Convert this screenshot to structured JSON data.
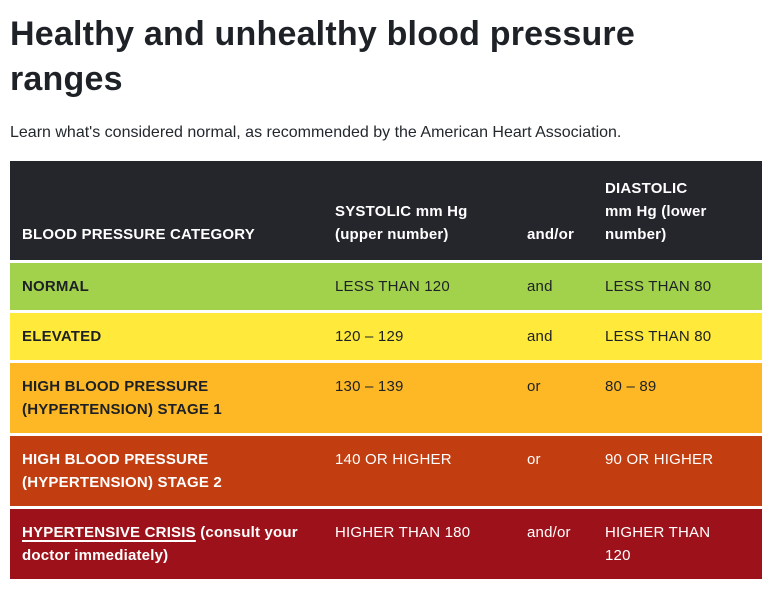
{
  "page": {
    "title_line1": "Healthy and unhealthy blood pressure",
    "title_line2": "ranges",
    "subtitle": "Learn what's considered normal, as recommended by the American Heart Association."
  },
  "table": {
    "header": {
      "category": "BLOOD PRESSURE CATEGORY",
      "systolic": "SYSTOLIC mm Hg (upper number)",
      "connector": "and/or",
      "diastolic": "DIASTOLIC mm Hg (lower number)",
      "bg": "#24262c",
      "text_color": "#ffffff"
    },
    "rows": [
      {
        "id": "normal",
        "category": "NORMAL",
        "category_note": "",
        "category_is_link": false,
        "systolic": "LESS THAN 120",
        "connector": "and",
        "diastolic": "LESS THAN 80",
        "bg": "#a2d14c",
        "text_color": "#1d2125"
      },
      {
        "id": "elevated",
        "category": "ELEVATED",
        "category_note": "",
        "category_is_link": false,
        "systolic": "120 – 129",
        "connector": "and",
        "diastolic": "LESS THAN 80",
        "bg": "#ffe93a",
        "text_color": "#1d2125"
      },
      {
        "id": "stage-1",
        "category": "HIGH BLOOD PRESSURE (HYPERTENSION) STAGE 1",
        "category_note": "",
        "category_is_link": false,
        "systolic": "130 – 139",
        "connector": "or",
        "diastolic": "80 – 89",
        "bg": "#feb826",
        "text_color": "#1d2125"
      },
      {
        "id": "stage-2",
        "category": "HIGH BLOOD PRESSURE (HYPERTENSION) STAGE 2",
        "category_note": "",
        "category_is_link": false,
        "systolic": "140 OR HIGHER",
        "connector": "or",
        "diastolic": "90 OR HIGHER",
        "bg": "#c23d10",
        "text_color": "#ffffff"
      },
      {
        "id": "crisis",
        "category": "HYPERTENSIVE CRISIS",
        "category_note": " (consult your doctor immediately)",
        "category_is_link": true,
        "systolic": "HIGHER THAN 180",
        "connector": "and/or",
        "diastolic": "HIGHER THAN 120",
        "bg": "#9d121a",
        "text_color": "#ffffff"
      }
    ]
  }
}
